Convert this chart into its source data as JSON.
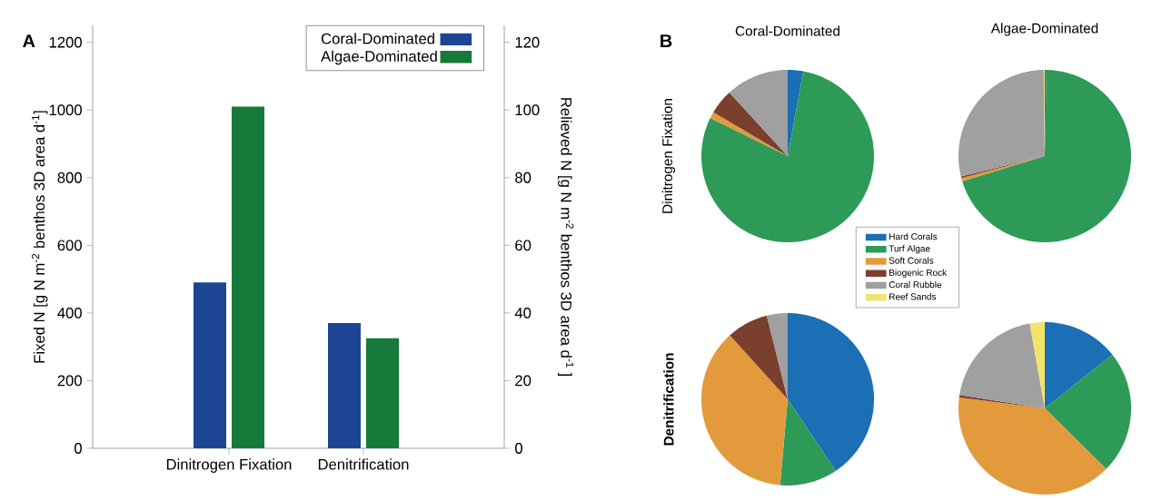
{
  "chart_data": [
    {
      "type": "bar",
      "categories": [
        "Dinitrogen Fixation",
        "Denitrification"
      ],
      "series": [
        {
          "name": "Coral-Dominated",
          "color": "#1c4693",
          "values": [
            490,
            370
          ]
        },
        {
          "name": "Algae-Dominated",
          "color": "#157a3a",
          "values": [
            1010,
            325
          ]
        }
      ],
      "ylabel": "Fixed N [g N m$^{-2}$ benthos 3D area d$^{-1}$]",
      "y2label": "Relieved N [g N m$^{-2}$ benthos 3D area d$^{-1}$ ]",
      "ylim": [
        0,
        1250
      ],
      "yticks": [
        0,
        200,
        400,
        600,
        800,
        1000,
        1200
      ],
      "y2lim": [
        0,
        125
      ],
      "y2ticks": [
        0,
        20,
        40,
        60,
        80,
        100,
        120
      ],
      "legend": "top right",
      "annotations": [
        "A"
      ]
    },
    {
      "type": "pie",
      "title": "Coral-Dominated",
      "ylabel": "Dinitrogen Fixation",
      "annotations": [
        "B"
      ],
      "categories": [
        null,
        null,
        null,
        null,
        null
      ],
      "values": [
        2.9,
        79.4,
        1.2,
        4.7,
        11.8
      ],
      "colors": [
        "#1a6fb5",
        "#2e9a58",
        "#e39a3c",
        "#7b3f2e",
        "#a0a0a0"
      ]
    },
    {
      "type": "pie",
      "title": "Algae-Dominated",
      "categories": [
        null,
        null,
        null,
        null,
        null,
        null
      ],
      "values": [
        0.3,
        70.0,
        0.6,
        0.3,
        28.6,
        0.2
      ],
      "colors": [
        "#1a6fb5",
        "#2e9a58",
        "#e39a3c",
        "#7b3f2e",
        "#a0a0a0",
        "#f2e36a"
      ]
    },
    {
      "type": "pie",
      "ylabel": "Denitrification",
      "categories": [
        null,
        null,
        null,
        null,
        null
      ],
      "values": [
        40.6,
        10.8,
        36.9,
        7.8,
        3.9
      ],
      "colors": [
        "#1a6fb5",
        "#2e9a58",
        "#e39a3c",
        "#7b3f2e",
        "#a0a0a0"
      ]
    },
    {
      "type": "pie",
      "legend": "top left",
      "categories": [
        "Hard Corals",
        "Turf Algae",
        "Soft Corals",
        "Biogenic Rock",
        "Coral Rubble",
        "Reef Sands"
      ],
      "values": [
        14.3,
        23.1,
        39.6,
        0.5,
        19.7,
        2.8
      ],
      "colors": [
        "#1a6fb5",
        "#2e9a58",
        "#e39a3c",
        "#7b3f2e",
        "#a0a0a0",
        "#f2e36a"
      ]
    }
  ]
}
